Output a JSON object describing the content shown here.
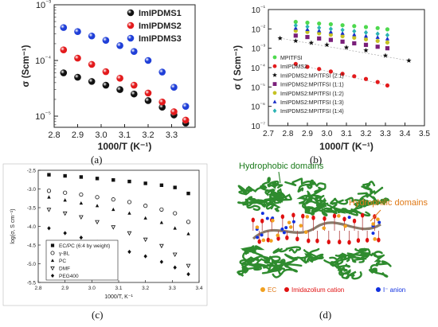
{
  "panel_labels": [
    "(a)",
    "(b)",
    "(c)",
    "(d)"
  ],
  "chart_data": [
    {
      "id": "a",
      "type": "scatter",
      "xlabel": "1000/T (K⁻¹)",
      "ylabel": "σ (Scm⁻¹)",
      "xlim": [
        2.8,
        3.4
      ],
      "ylim_log10": [
        -5.2,
        -3
      ],
      "yscale": "log",
      "xticks": [
        "2.8",
        "2.9",
        "3.0",
        "3.1",
        "3.2",
        "3.3"
      ],
      "yticks": [
        "10⁻⁵",
        "10⁻⁴",
        "10⁻³"
      ],
      "legend_position": "top-right",
      "series": [
        {
          "name": "ImIPDMS1",
          "color": "#111111",
          "x": [
            2.84,
            2.9,
            2.96,
            3.02,
            3.08,
            3.14,
            3.2,
            3.26,
            3.31,
            3.36
          ],
          "y": [
            6e-05,
            5e-05,
            4.2e-05,
            3.6e-05,
            3e-05,
            2.5e-05,
            1.9e-05,
            1.45e-05,
            1.05e-05,
            7.5e-06
          ]
        },
        {
          "name": "ImIPDMS2",
          "color": "#e31a1c",
          "x": [
            2.84,
            2.9,
            2.96,
            3.02,
            3.08,
            3.14,
            3.2,
            3.26,
            3.31,
            3.36
          ],
          "y": [
            0.000155,
            0.00011,
            8.5e-05,
            6.3e-05,
            4.8e-05,
            3.6e-05,
            2.6e-05,
            1.8e-05,
            1.2e-05,
            8.5e-06
          ]
        },
        {
          "name": "ImIPDMS3",
          "color": "#1f3fd8",
          "x": [
            2.84,
            2.9,
            2.96,
            3.02,
            3.08,
            3.14,
            3.2,
            3.26,
            3.31,
            3.36
          ],
          "y": [
            0.00039,
            0.00033,
            0.000275,
            0.00023,
            0.000185,
            0.000145,
            0.0001,
            6.2e-05,
            3.3e-05,
            1.5e-05
          ]
        }
      ]
    },
    {
      "id": "b",
      "type": "scatter",
      "xlabel": "1000/T (K⁻¹)",
      "ylabel": "σ ( Scm⁻¹)",
      "xlim": [
        2.7,
        3.5
      ],
      "ylim_log10": [
        -7,
        -1
      ],
      "yscale": "log",
      "xticks": [
        "2.7",
        "2.8",
        "2.9",
        "3.0",
        "3.1",
        "3.2",
        "3.3",
        "3.4",
        "3.5"
      ],
      "yticks": [
        "10⁻⁷",
        "10⁻⁶",
        "10⁻⁵",
        "10⁻⁴",
        "10⁻³",
        "10⁻²",
        "10⁻¹"
      ],
      "legend_position": "bottom-left",
      "series": [
        {
          "name": "MPITFSI",
          "color": "#4ed94e",
          "marker": "circle",
          "x": [
            2.84,
            2.9,
            2.96,
            3.02,
            3.08,
            3.14,
            3.2,
            3.26,
            3.31
          ],
          "y": [
            0.023,
            0.021,
            0.019,
            0.0175,
            0.0155,
            0.014,
            0.0125,
            0.011,
            0.0095
          ]
        },
        {
          "name": "ImIPDMS2",
          "color": "#e31a1c",
          "marker": "circle",
          "x": [
            2.84,
            2.9,
            2.96,
            3.02,
            3.08,
            3.14,
            3.2,
            3.26,
            3.31
          ],
          "y": [
            0.000155,
            0.00011,
            8.5e-05,
            6.3e-05,
            4.8e-05,
            3.6e-05,
            2.6e-05,
            1.8e-05,
            1.2e-05
          ]
        },
        {
          "name": "ImIPDMS2:MPITFSI (2:1)",
          "color": "#111111",
          "marker": "star",
          "x": [
            2.76,
            2.84,
            2.92,
            3.0,
            3.1,
            3.2,
            3.3,
            3.42
          ],
          "y": [
            0.0033,
            0.0024,
            0.0019,
            0.0015,
            0.0011,
            0.00078,
            0.00042,
            0.00023
          ]
        },
        {
          "name": "ImIPDMS2:MPITFSI (1:1)",
          "color": "#7a1f7a",
          "marker": "square",
          "x": [
            2.84,
            2.9,
            2.96,
            3.02,
            3.08,
            3.14,
            3.2,
            3.26,
            3.31
          ],
          "y": [
            0.0045,
            0.0038,
            0.0032,
            0.0027,
            0.0022,
            0.0018,
            0.0015,
            0.0012,
            0.001
          ]
        },
        {
          "name": "ImIPDMS2:MPITFSI (1:2)",
          "color": "#c5c224",
          "marker": "circle",
          "x": [
            2.84,
            2.9,
            2.96,
            3.02,
            3.08,
            3.14,
            3.2,
            3.26,
            3.31
          ],
          "y": [
            0.008,
            0.007,
            0.006,
            0.005,
            0.0042,
            0.0035,
            0.0029,
            0.0024,
            0.002
          ]
        },
        {
          "name": "ImIPDMS2:MPITFSI (1:3)",
          "color": "#1b2fc8",
          "marker": "triangle",
          "x": [
            2.84,
            2.9,
            2.96,
            3.02,
            3.08,
            3.14,
            3.2,
            3.26,
            3.31
          ],
          "y": [
            0.011,
            0.0095,
            0.0082,
            0.007,
            0.006,
            0.0051,
            0.0043,
            0.0037,
            0.0031
          ]
        },
        {
          "name": "ImIPDMS2:MPITFSI (1:4)",
          "color": "#2bb3b3",
          "marker": "diamond",
          "x": [
            2.84,
            2.9,
            2.96,
            3.02,
            3.08,
            3.14,
            3.2,
            3.26,
            3.31
          ],
          "y": [
            0.015,
            0.013,
            0.0115,
            0.01,
            0.0088,
            0.0076,
            0.0065,
            0.0056,
            0.0048
          ]
        }
      ]
    },
    {
      "id": "c",
      "type": "scatter",
      "xlabel": "1000/T, K⁻¹",
      "ylabel": "log(σ, S cm⁻¹)",
      "xlim": [
        2.8,
        3.4
      ],
      "ylim": [
        -5.5,
        -2.5
      ],
      "xticks": [
        "2.8",
        "2.9",
        "3.0",
        "3.1",
        "3.2",
        "3.3",
        "3.4"
      ],
      "yticks": [
        "-5.5",
        "-5.0",
        "-4.5",
        "-4.0",
        "-3.5",
        "-3.0",
        "-2.5"
      ],
      "legend_position": "bottom-left",
      "series": [
        {
          "name": "EC/PC (6:4 by weight)",
          "marker": "square-filled",
          "x": [
            2.84,
            2.9,
            2.96,
            3.02,
            3.08,
            3.14,
            3.2,
            3.26,
            3.31,
            3.36
          ],
          "y": [
            -2.62,
            -2.65,
            -2.68,
            -2.72,
            -2.76,
            -2.8,
            -2.85,
            -2.9,
            -2.96,
            -3.12
          ]
        },
        {
          "name": "γ-BL",
          "marker": "circle-open",
          "x": [
            2.84,
            2.9,
            2.96,
            3.02,
            3.08,
            3.14,
            3.2,
            3.26,
            3.31,
            3.36
          ],
          "y": [
            -3.05,
            -3.1,
            -3.15,
            -3.22,
            -3.28,
            -3.35,
            -3.45,
            -3.55,
            -3.65,
            -3.88
          ]
        },
        {
          "name": "PC",
          "marker": "triangle-filled",
          "x": [
            2.84,
            2.9,
            2.96,
            3.02,
            3.08,
            3.14,
            3.2,
            3.26,
            3.31,
            3.36
          ],
          "y": [
            -3.22,
            -3.3,
            -3.38,
            -3.45,
            -3.55,
            -3.65,
            -3.78,
            -3.9,
            -4.05,
            -4.2
          ]
        },
        {
          "name": "DMF",
          "marker": "triangle-down-open",
          "x": [
            2.84,
            2.9,
            2.96,
            3.02,
            3.08,
            3.14,
            3.2,
            3.26,
            3.31,
            3.36
          ],
          "y": [
            -3.55,
            -3.65,
            -3.75,
            -3.88,
            -4.02,
            -4.18,
            -4.35,
            -4.52,
            -4.75,
            -5.05
          ]
        },
        {
          "name": "PEG400",
          "marker": "diamond-filled",
          "x": [
            2.84,
            2.9,
            2.96,
            3.02,
            3.08,
            3.14,
            3.2,
            3.26,
            3.31,
            3.36
          ],
          "y": [
            -4.05,
            -4.18,
            -4.3,
            -4.42,
            -4.55,
            -4.68,
            -4.8,
            -4.95,
            -5.1,
            -5.28
          ]
        }
      ]
    }
  ],
  "diagram_d": {
    "hydrophobic_label": "Hydrophobic domains",
    "hydrophilic_label": "Hydrophilic domains",
    "legend": [
      {
        "label": "EC",
        "color": "#f0a020"
      },
      {
        "label": "Imidazolium cation",
        "color": "#e01010"
      },
      {
        "label": "I⁻ anion",
        "color": "#1030e0"
      }
    ],
    "colors": {
      "hydrophobic": "#2e8b2e",
      "hydrophilic": "#f08a24",
      "backbone": "#8a7a6a"
    }
  }
}
